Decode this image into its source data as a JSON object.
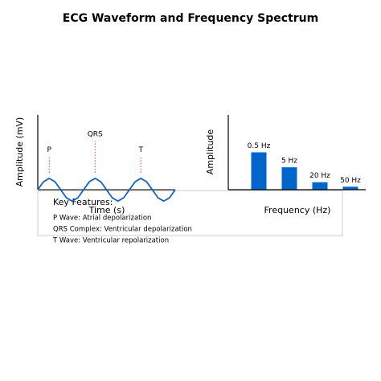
{
  "title": "ECG Waveform and Frequency Spectrum",
  "chart_data": [
    {
      "type": "line",
      "ylabel": "Amplitude (mV)",
      "xlabel": "Time (s)",
      "x": [
        0,
        0.125,
        0.25,
        0.375,
        0.5,
        0.625,
        0.75,
        0.875,
        1,
        1.125,
        1.25,
        1.375,
        1.5,
        1.625,
        1.75,
        1.875,
        2,
        2.125,
        2.25,
        2.375,
        2.5,
        2.625,
        2.75,
        2.875,
        3
      ],
      "series": [
        {
          "color": "#1565c0",
          "values": [
            0,
            0.71,
            1,
            0.71,
            0,
            -0.71,
            -1,
            -0.71,
            0,
            0.71,
            1,
            0.71,
            0,
            -0.71,
            -1,
            -0.71,
            0,
            0.71,
            1,
            0.71,
            0,
            -0.71,
            -1,
            -0.71,
            0
          ]
        }
      ],
      "xlim": [
        0,
        3
      ],
      "ylim": [
        -1.2,
        6.6
      ],
      "annotations": [
        {
          "text": "P",
          "x": 0.25,
          "y": 3.5
        },
        {
          "text": "QRS",
          "x": 1.25,
          "y": 4.9
        },
        {
          "text": "T",
          "x": 2.25,
          "y": 3.5
        }
      ],
      "annotation_color": "#e53935",
      "legend": {
        "title": "Key Features:",
        "items": [
          "P Wave: Atrial depolarization",
          "QRS Complex: Ventricular depolarization",
          "T Wave: Ventricular repolarization"
        ]
      }
    },
    {
      "type": "bar",
      "ylabel": "Amplitude",
      "xlabel": "Frequency (Hz)",
      "categories": [
        "0.5 Hz",
        "5 Hz",
        "20 Hz",
        "50 Hz"
      ],
      "values": [
        0.5,
        0.3,
        0.1,
        0.04
      ],
      "color": "#0066cc",
      "ylim": [
        0,
        1
      ]
    }
  ]
}
